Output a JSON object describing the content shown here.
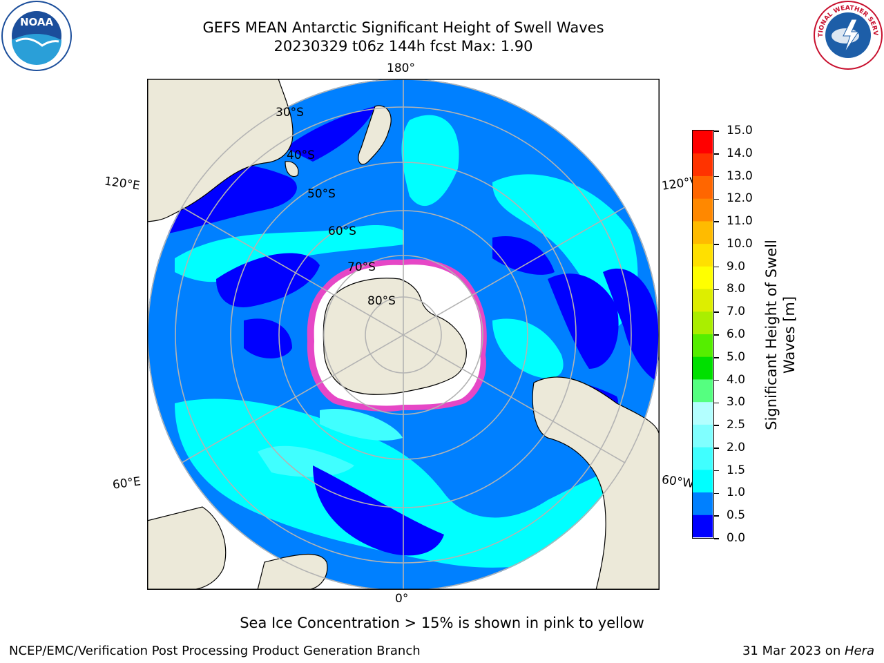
{
  "title": {
    "line1": "GEFS MEAN Antarctic Significant Height of Swell Waves",
    "line2": "20230329 t06z 144h fcst   Max: 1.90"
  },
  "map": {
    "projection": "south-polar-stereographic",
    "lon_labels": {
      "top": "180°",
      "bottom": "0°",
      "left_upper": "120°E",
      "left_lower": "60°E",
      "right_upper": "120°W",
      "right_lower": "60°W"
    },
    "lat_labels": [
      "30°S",
      "40°S",
      "50°S",
      "60°S",
      "70°S",
      "80°S"
    ],
    "colors": {
      "land": "#ece9d9",
      "ocean_low": "#0000ff",
      "ocean_mid": "#0080ff",
      "ocean_high": "#00ffff",
      "sea_ice": "#ff40c0",
      "grid": "#b3b3b3"
    }
  },
  "colorbar": {
    "label_line1": "Significant Height of Swell",
    "label_line2": "Waves [m]",
    "ticks": [
      "0.0",
      "0.5",
      "1.0",
      "1.5",
      "2.0",
      "2.5",
      "3.0",
      "4.0",
      "5.0",
      "6.0",
      "7.0",
      "8.0",
      "9.0",
      "10.0",
      "11.0",
      "12.0",
      "13.0",
      "14.0",
      "15.0"
    ],
    "colors": [
      "#0000ff",
      "#0080ff",
      "#00ffff",
      "#40ffff",
      "#80ffff",
      "#b3ffff",
      "#55ff80",
      "#00e000",
      "#55ee00",
      "#aaee00",
      "#ddee00",
      "#ffff00",
      "#ffe000",
      "#ffbb00",
      "#ff8800",
      "#ff6600",
      "#ff3300",
      "#ff0000"
    ]
  },
  "note": "Sea Ice Concentration > 15% is shown in pink to yellow",
  "footer": {
    "left": "NCEP/EMC/Verification Post Processing Product Generation Branch",
    "right_prefix": "31 Mar 2023 on ",
    "right_host": "Hera"
  },
  "logos": {
    "left": "NOAA",
    "right": "NATIONAL WEATHER SERVICE"
  }
}
